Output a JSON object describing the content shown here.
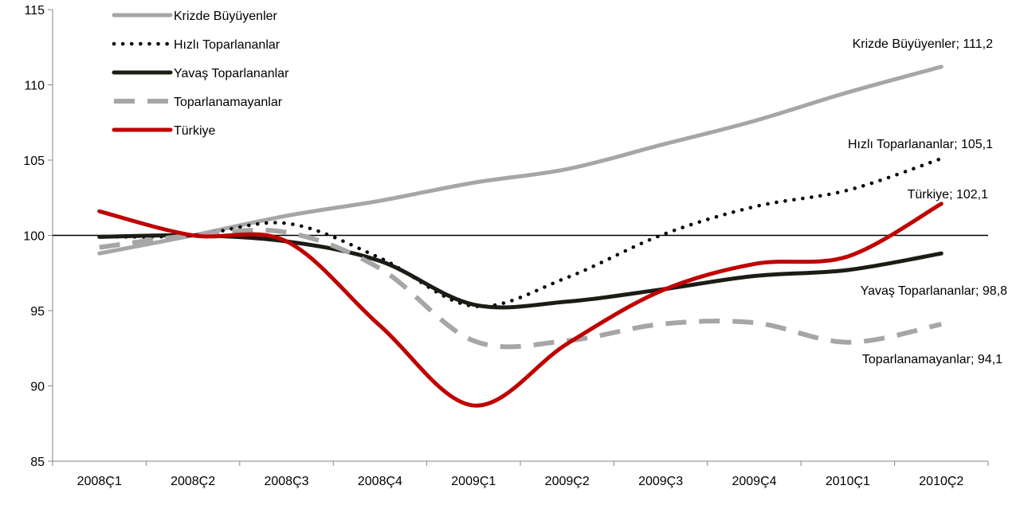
{
  "chart_data": {
    "type": "line",
    "title": "",
    "xlabel": "",
    "ylabel": "",
    "categories": [
      "2008Ç1",
      "2008Ç2",
      "2008Ç3",
      "2008Ç4",
      "2009Ç1",
      "2009Ç2",
      "2009Ç3",
      "2009Ç4",
      "2010Ç1",
      "2010Ç2"
    ],
    "ylim": [
      85,
      115
    ],
    "yticks": [
      85,
      90,
      95,
      100,
      105,
      110,
      115
    ],
    "reference_line": 100,
    "grid": false,
    "legend_position": "top-left",
    "series": [
      {
        "name": "Krizde Büyüyenler",
        "style": "solid",
        "color": "#A6A6A6",
        "values": [
          98.8,
          100.0,
          101.3,
          102.3,
          103.5,
          104.4,
          106.0,
          107.6,
          109.5,
          111.2
        ],
        "end_label": "Krizde Büyüyenler; 111,2"
      },
      {
        "name": "Hızlı Toparlananlar",
        "style": "dotted",
        "color": "#000000",
        "values": [
          99.9,
          100.0,
          100.8,
          98.5,
          95.3,
          97.2,
          100.0,
          101.9,
          103.0,
          105.1
        ],
        "end_label": "Hızlı Toparlananlar; 105,1"
      },
      {
        "name": "Yavaş Toparlananlar",
        "style": "solid",
        "color": "#1C1C14",
        "values": [
          99.9,
          100.0,
          99.6,
          98.3,
          95.4,
          95.6,
          96.4,
          97.3,
          97.7,
          98.8
        ],
        "end_label": "Yavaş Toparlananlar; 98,8"
      },
      {
        "name": "Toparlanamayanlar",
        "style": "dashed",
        "color": "#A6A6A6",
        "values": [
          99.2,
          100.0,
          100.2,
          97.8,
          93.0,
          93.0,
          94.1,
          94.2,
          92.9,
          94.1
        ],
        "end_label": "Toparlanamayanlar; 94,1"
      },
      {
        "name": "Türkiye",
        "style": "solid",
        "color": "#C00000",
        "values": [
          101.6,
          100.0,
          99.6,
          94.0,
          88.7,
          92.8,
          96.3,
          98.1,
          98.6,
          102.1
        ],
        "end_label": "Türkiye; 102,1"
      }
    ]
  }
}
